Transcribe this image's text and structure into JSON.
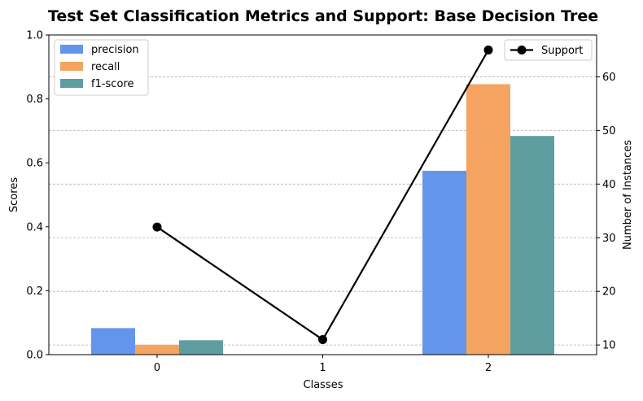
{
  "chart_data": {
    "type": "bar",
    "title": "Test Set Classification Metrics and Support: Base Decision Tree",
    "xlabel": "Classes",
    "ylabel": "Scores",
    "y2label": "Number of Instances",
    "categories": [
      "0",
      "1",
      "2"
    ],
    "ylim": [
      0,
      1.0
    ],
    "yticks": [
      "0.0",
      "0.2",
      "0.4",
      "0.6",
      "0.8",
      "1.0"
    ],
    "y2lim": [
      8.2,
      67.8
    ],
    "y2ticks": [
      "10",
      "20",
      "30",
      "40",
      "50",
      "60"
    ],
    "grid": "horizontal dashed (secondary axis)",
    "series": [
      {
        "name": "precision",
        "color": "#6495ED",
        "values": [
          0.083,
          0.0,
          0.575
        ]
      },
      {
        "name": "recall",
        "color": "#F4A460",
        "values": [
          0.031,
          0.0,
          0.846
        ]
      },
      {
        "name": "f1-score",
        "color": "#5F9EA0",
        "values": [
          0.045,
          0.0,
          0.684
        ]
      }
    ],
    "line_series": {
      "name": "Support",
      "color": "#000000",
      "values": [
        32,
        11,
        65
      ]
    },
    "legend_bars_position": "upper-left",
    "legend_line_position": "upper-right"
  }
}
